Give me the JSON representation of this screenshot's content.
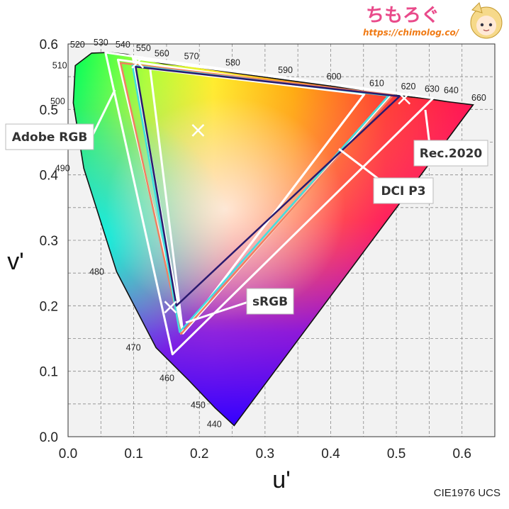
{
  "chart_data": {
    "type": "scatter",
    "title": "",
    "xlabel": "u'",
    "ylabel": "v'",
    "footer": "CIE1976 UCS",
    "xlim": [
      0.0,
      0.65
    ],
    "ylim": [
      0.0,
      0.6
    ],
    "grid": true,
    "xticks": [
      "0.0",
      "0.1",
      "0.2",
      "0.3",
      "0.4",
      "0.5",
      "0.6"
    ],
    "yticks": [
      "0.0",
      "0.1",
      "0.2",
      "0.3",
      "0.4",
      "0.5",
      "0.6"
    ],
    "spectral_locus": [
      {
        "nm": "440",
        "u": 0.253,
        "v": 0.017
      },
      {
        "nm": "450",
        "u": 0.224,
        "v": 0.044
      },
      {
        "nm": "460",
        "u": 0.183,
        "v": 0.087
      },
      {
        "nm": "470",
        "u": 0.134,
        "v": 0.136
      },
      {
        "nm": "480",
        "u": 0.074,
        "v": 0.252
      },
      {
        "nm": "490",
        "u": 0.024,
        "v": 0.41
      },
      {
        "nm": "500",
        "u": 0.008,
        "v": 0.51
      },
      {
        "nm": "510",
        "u": 0.011,
        "v": 0.567
      },
      {
        "nm": "520",
        "u": 0.036,
        "v": 0.586
      },
      {
        "nm": "530",
        "u": 0.063,
        "v": 0.587
      },
      {
        "nm": "540",
        "u": 0.09,
        "v": 0.584
      },
      {
        "nm": "550",
        "u": 0.117,
        "v": 0.576
      },
      {
        "nm": "560",
        "u": 0.145,
        "v": 0.57
      },
      {
        "nm": "570",
        "u": 0.188,
        "v": 0.566
      },
      {
        "nm": "580",
        "u": 0.251,
        "v": 0.556
      },
      {
        "nm": "590",
        "u": 0.331,
        "v": 0.545
      },
      {
        "nm": "600",
        "u": 0.405,
        "v": 0.535
      },
      {
        "nm": "610",
        "u": 0.468,
        "v": 0.525
      },
      {
        "nm": "620",
        "u": 0.514,
        "v": 0.52
      },
      {
        "nm": "630",
        "u": 0.55,
        "v": 0.516
      },
      {
        "nm": "640",
        "u": 0.577,
        "v": 0.512
      },
      {
        "nm": "660",
        "u": 0.617,
        "v": 0.507
      }
    ],
    "gamuts": [
      {
        "name": "Rec.2020",
        "color": "#ffffff",
        "points": [
          [
            0.556,
            0.517
          ],
          [
            0.057,
            0.587
          ],
          [
            0.159,
            0.126
          ]
        ]
      },
      {
        "name": "Adobe RGB",
        "color": "#ffffff",
        "points": [
          [
            0.451,
            0.523
          ],
          [
            0.076,
            0.576
          ],
          [
            0.175,
            0.158
          ]
        ]
      },
      {
        "name": "DCI P3",
        "color": "#ffffff",
        "points": [
          [
            0.496,
            0.526
          ],
          [
            0.099,
            0.578
          ],
          [
            0.175,
            0.158
          ]
        ]
      },
      {
        "name": "sRGB",
        "color": "#ffffff",
        "points": [
          [
            0.451,
            0.523
          ],
          [
            0.125,
            0.562
          ],
          [
            0.175,
            0.158
          ]
        ]
      },
      {
        "name": "",
        "color": "#f08060",
        "points": [
          [
            0.495,
            0.522
          ],
          [
            0.08,
            0.571
          ],
          [
            0.172,
            0.157
          ]
        ]
      },
      {
        "name": "",
        "color": "#40e0e0",
        "points": [
          [
            0.488,
            0.521
          ],
          [
            0.098,
            0.567
          ],
          [
            0.17,
            0.16
          ]
        ]
      },
      {
        "name": "",
        "color": "#2a1a6e",
        "points": [
          [
            0.505,
            0.52
          ],
          [
            0.103,
            0.565
          ],
          [
            0.165,
            0.2
          ]
        ]
      }
    ],
    "white_points": [
      {
        "u": 0.198,
        "v": 0.468
      },
      {
        "u": 0.106,
        "v": 0.572
      },
      {
        "u": 0.512,
        "v": 0.517
      },
      {
        "u": 0.156,
        "v": 0.198
      }
    ],
    "annotations": [
      "Adobe RGB",
      "DCI P3",
      "Rec.2020",
      "sRGB"
    ]
  },
  "branding": {
    "logo_text": "ちもろぐ",
    "url": "https://chimolog.co/"
  }
}
